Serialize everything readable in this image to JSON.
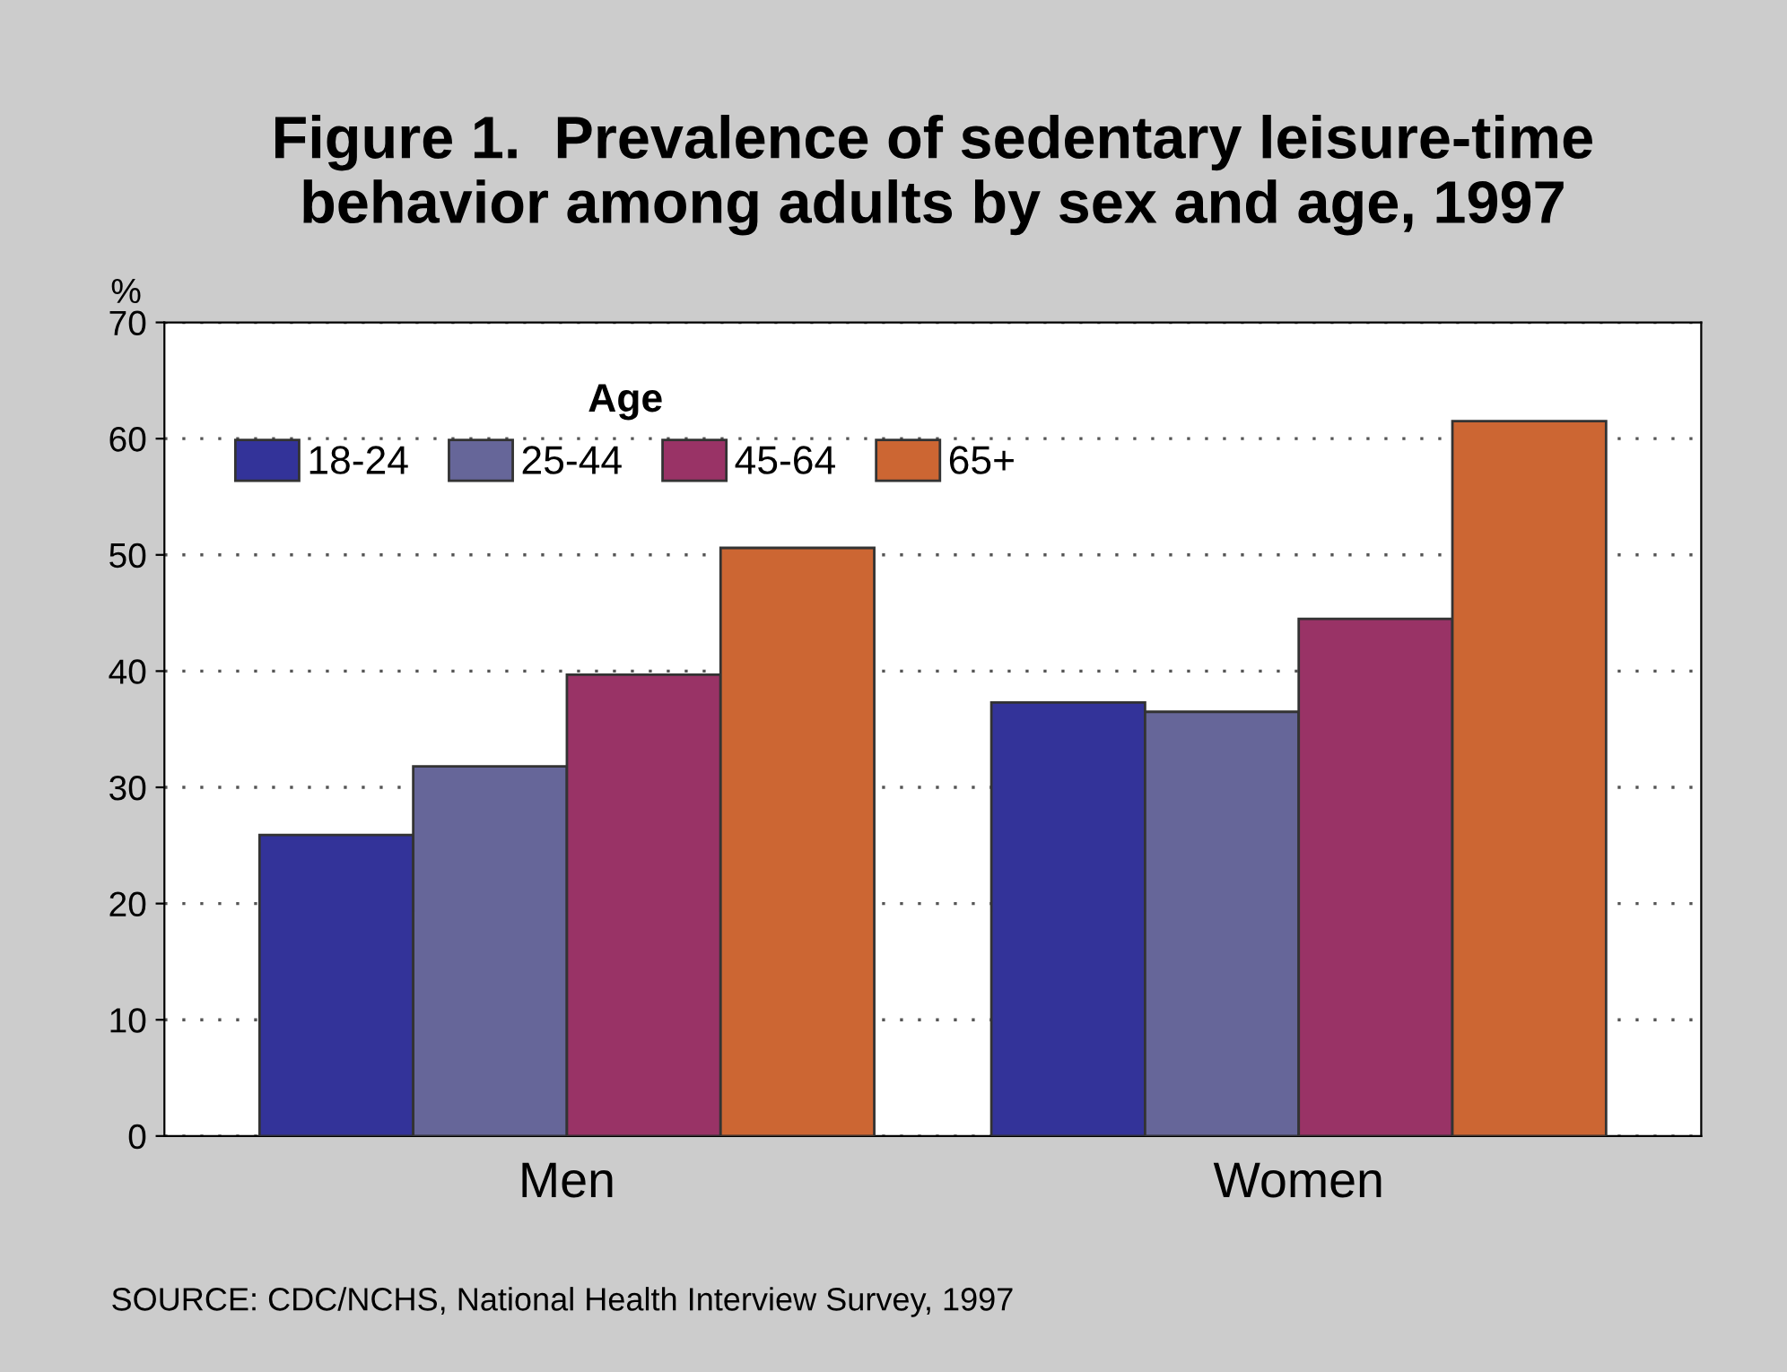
{
  "chart_data": {
    "type": "bar",
    "title": "Figure 1.  Prevalence of sedentary leisure-time\nbehavior among adults by sex and age, 1997",
    "ylabel": "%",
    "legend_title": "Age",
    "categories": [
      "Men",
      "Women"
    ],
    "series": [
      {
        "name": "18-24",
        "color": "#333399",
        "values": [
          25.9,
          37.3
        ]
      },
      {
        "name": "25-44",
        "color": "#666699",
        "values": [
          31.8,
          36.5
        ]
      },
      {
        "name": "45-64",
        "color": "#993366",
        "values": [
          39.7,
          44.5
        ]
      },
      {
        "name": "65+",
        "color": "#cc6633",
        "values": [
          50.6,
          61.5
        ]
      }
    ],
    "ylim": [
      0,
      70
    ],
    "yticks": [
      0,
      10,
      20,
      30,
      40,
      50,
      60,
      70
    ],
    "grid": "y",
    "legend": "top",
    "annotations": [
      "SOURCE: CDC/NCHS, National Health Interview Survey, 1997"
    ]
  }
}
